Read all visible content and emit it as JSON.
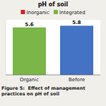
{
  "chart_data": {
    "type": "bar",
    "title": "pH of soil",
    "categories": [
      "Organic",
      "Before"
    ],
    "values": [
      5.6,
      5.8
    ],
    "colors": [
      "#7ab648",
      "#4472c4"
    ],
    "data_labels": true,
    "ylim": [
      0,
      6.5
    ],
    "tick_labels": "x",
    "grid": false,
    "legend": "top",
    "legend_entries": [
      {
        "name": "Inorganic",
        "color": "#cc2222"
      },
      {
        "name": "Integrated",
        "color": "#7ab648"
      }
    ],
    "caption": "Figure 5:  Effect of management practices on pH of soil"
  }
}
